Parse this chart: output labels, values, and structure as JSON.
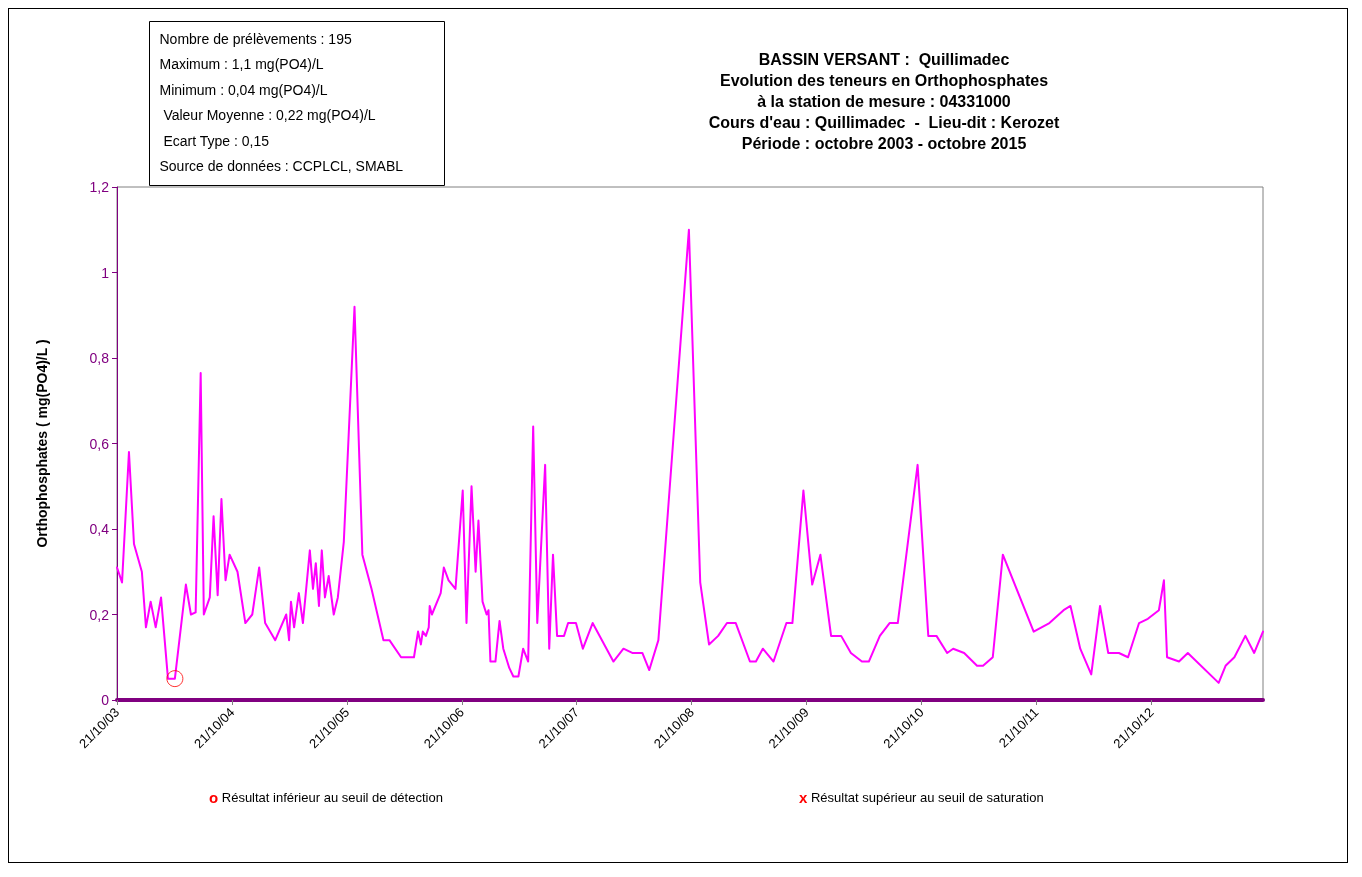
{
  "chart_data": {
    "type": "line",
    "title": "BASSIN VERSANT :  Quillimadec\nEvolution des teneurs en Orthophosphates\nà la station de mesure : 04331000\nCours d'eau : Quillimadec  -  Lieu-dit : Kerozet\nPériode : octobre 2003 - octobre 2015",
    "ylabel": "Orthophosphates ( mg(PO4)/L )",
    "annotations": [
      "Nombre de prélèvements : 195\nMaximum : 1,1 mg(PO4)/L\nMinimum : 0,04 mg(PO4)/L\n Valeur Moyenne : 0,22 mg(PO4)/L\n Ecart Type : 0,15\nSource de données : CCPLCL, SMABL",
      "o Résultat inférieur au seuil de détection",
      "x Résultat supérieur au seuil de saturation"
    ],
    "xlim": [
      "2003-10-21",
      "2013-10-11"
    ],
    "xticks": [
      {
        "value": "2003-10-21",
        "label": "21/10/03"
      },
      {
        "value": "2004-10-21",
        "label": "21/10/04"
      },
      {
        "value": "2005-10-21",
        "label": "21/10/05"
      },
      {
        "value": "2006-10-21",
        "label": "21/10/06"
      },
      {
        "value": "2007-10-21",
        "label": "21/10/07"
      },
      {
        "value": "2008-10-21",
        "label": "21/10/08"
      },
      {
        "value": "2009-10-21",
        "label": "21/10/09"
      },
      {
        "value": "2010-10-21",
        "label": "21/10/10"
      },
      {
        "value": "2011-10-21",
        "label": "21/10/11"
      },
      {
        "value": "2012-10-21",
        "label": "21/10/12"
      }
    ],
    "ylim": [
      0,
      1.2
    ],
    "yticks": [
      0,
      {
        "value": 0.2,
        "label": "0,2"
      },
      {
        "value": 0.4,
        "label": "0,4"
      },
      {
        "value": 0.6,
        "label": "0,6"
      },
      {
        "value": 0.8,
        "label": "0,8"
      },
      1,
      {
        "value": 1.2,
        "label": "1,2"
      }
    ],
    "grid": false,
    "marker": "none",
    "line_style": "solid",
    "series": [
      {
        "color": "#ff00ff",
        "x": [
          "2003-10-21",
          "2003-11-06",
          "2003-11-28",
          "2003-12-14",
          "2004-01-08",
          "2004-01-21",
          "2004-02-05",
          "2004-02-21",
          "2004-03-09",
          "2004-03-31",
          "2004-04-22",
          "2004-05-27",
          "2004-06-12",
          "2004-06-27",
          "2004-07-13",
          "2004-07-23",
          "2004-08-11",
          "2004-08-23",
          "2004-09-05",
          "2004-09-17",
          "2004-09-30",
          "2004-10-13",
          "2004-11-07",
          "2004-12-02",
          "2004-12-24",
          "2005-01-15",
          "2005-02-03",
          "2005-03-07",
          "2005-04-11",
          "2005-04-20",
          "2005-04-26",
          "2005-05-06",
          "2005-05-21",
          "2005-06-03",
          "2005-06-25",
          "2005-07-05",
          "2005-07-14",
          "2005-07-24",
          "2005-08-02",
          "2005-08-12",
          "2005-08-24",
          "2005-09-09",
          "2005-09-22",
          "2005-10-11",
          "2005-11-14",
          "2005-12-09",
          "2006-01-07",
          "2006-02-14",
          "2006-03-05",
          "2006-04-11",
          "2006-05-22",
          "2006-06-04",
          "2006-06-13",
          "2006-06-19",
          "2006-06-29",
          "2006-07-08",
          "2006-07-11",
          "2006-07-18",
          "2006-08-15",
          "2006-08-25",
          "2006-09-09",
          "2006-10-01",
          "2006-10-24",
          "2006-11-05",
          "2006-11-21",
          "2006-12-04",
          "2006-12-13",
          "2006-12-26",
          "2007-01-08",
          "2007-01-14",
          "2007-01-20",
          "2007-02-05",
          "2007-02-18",
          "2007-03-02",
          "2007-03-21",
          "2007-04-03",
          "2007-04-19",
          "2007-05-04",
          "2007-05-20",
          "2007-06-05",
          "2007-06-18",
          "2007-07-13",
          "2007-07-26",
          "2007-08-07",
          "2007-08-20",
          "2007-09-11",
          "2007-09-24",
          "2007-10-19",
          "2007-11-10",
          "2007-12-11",
          "2008-02-15",
          "2008-03-18",
          "2008-04-15",
          "2008-05-17",
          "2008-06-08",
          "2008-07-07",
          "2008-10-12",
          "2008-11-17",
          "2008-12-15",
          "2009-01-13",
          "2009-02-10",
          "2009-03-10",
          "2009-04-24",
          "2009-05-13",
          "2009-06-04",
          "2009-07-08",
          "2009-08-18",
          "2009-09-06",
          "2009-10-11",
          "2009-11-08",
          "2009-12-04",
          "2010-01-07",
          "2010-02-08",
          "2010-03-11",
          "2010-04-15",
          "2010-05-07",
          "2010-06-11",
          "2010-07-12",
          "2010-08-07",
          "2010-10-09",
          "2010-11-12",
          "2010-12-08",
          "2011-01-11",
          "2011-01-30",
          "2011-03-06",
          "2011-04-16",
          "2011-05-05",
          "2011-06-05",
          "2011-07-07",
          "2011-10-13",
          "2011-12-02",
          "2012-01-16",
          "2012-02-07",
          "2012-03-09",
          "2012-04-13",
          "2012-05-11",
          "2012-06-06",
          "2012-07-10",
          "2012-08-08",
          "2012-09-12",
          "2012-10-10",
          "2012-11-14",
          "2012-11-30",
          "2012-12-10",
          "2013-01-17",
          "2013-02-14",
          "2013-05-23",
          "2013-06-14",
          "2013-07-12",
          "2013-08-16",
          "2013-09-13",
          "2013-10-11"
        ],
        "values": [
          0.31,
          0.275,
          0.58,
          0.365,
          0.3,
          0.17,
          0.23,
          0.17,
          0.24,
          0.05,
          0.05,
          0.27,
          0.2,
          0.205,
          0.765,
          0.2,
          0.24,
          0.43,
          0.245,
          0.47,
          0.28,
          0.34,
          0.3,
          0.18,
          0.2,
          0.31,
          0.18,
          0.14,
          0.2,
          0.14,
          0.23,
          0.17,
          0.25,
          0.18,
          0.35,
          0.26,
          0.32,
          0.22,
          0.35,
          0.24,
          0.29,
          0.2,
          0.24,
          0.37,
          0.92,
          0.34,
          0.26,
          0.14,
          0.14,
          0.1,
          0.1,
          0.16,
          0.13,
          0.16,
          0.15,
          0.17,
          0.22,
          0.2,
          0.25,
          0.31,
          0.28,
          0.26,
          0.49,
          0.18,
          0.5,
          0.3,
          0.42,
          0.23,
          0.2,
          0.21,
          0.09,
          0.09,
          0.185,
          0.12,
          0.075,
          0.055,
          0.055,
          0.12,
          0.09,
          0.64,
          0.18,
          0.55,
          0.12,
          0.34,
          0.15,
          0.15,
          0.18,
          0.18,
          0.12,
          0.18,
          0.09,
          0.12,
          0.11,
          0.11,
          0.07,
          0.14,
          1.1,
          0.275,
          0.13,
          0.15,
          0.18,
          0.18,
          0.09,
          0.09,
          0.12,
          0.09,
          0.18,
          0.18,
          0.49,
          0.27,
          0.34,
          0.15,
          0.15,
          0.11,
          0.09,
          0.09,
          0.15,
          0.18,
          0.18,
          0.55,
          0.15,
          0.15,
          0.11,
          0.12,
          0.11,
          0.08,
          0.08,
          0.1,
          0.34,
          0.16,
          0.18,
          0.21,
          0.22,
          0.12,
          0.06,
          0.22,
          0.11,
          0.11,
          0.1,
          0.18,
          0.19,
          0.21,
          0.28,
          0.1,
          0.09,
          0.11,
          0.04,
          0.08,
          0.1,
          0.15,
          0.11,
          0.16
        ]
      },
      {
        "type": "scatter",
        "marker": "circle",
        "color": "#ff0000",
        "x": [
          "2004-04-22"
        ],
        "values": [
          0.05
        ]
      }
    ]
  }
}
